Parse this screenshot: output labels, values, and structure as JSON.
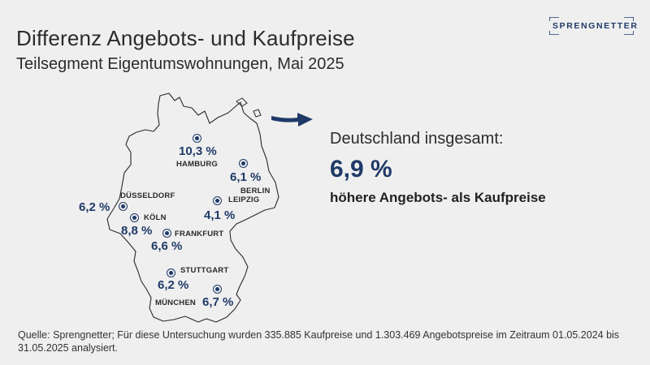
{
  "title": "Differenz Angebots- und Kaufpreise",
  "subtitle": "Teilsegment Eigentumswohnungen, Mai 2025",
  "logo": {
    "text": "SPRENGNETTER",
    "color": "#1f3a68"
  },
  "accent_color": "#1f3a68",
  "map": {
    "region": "Deutschland",
    "marker_icon": "circle-dot",
    "cities": [
      {
        "id": "hamburg",
        "name": "HAMBURG",
        "value": "10,3 %"
      },
      {
        "id": "berlin",
        "name": "BERLIN",
        "value": "6,1 %"
      },
      {
        "id": "leipzig",
        "name": "LEIPZIG",
        "value": "4,1 %"
      },
      {
        "id": "duesseldorf",
        "name": "DÜSSELDORF",
        "value": "6,2 %"
      },
      {
        "id": "koeln",
        "name": "KÖLN",
        "value": "8,8 %"
      },
      {
        "id": "frankfurt",
        "name": "FRANKFURT",
        "value": "6,6 %"
      },
      {
        "id": "stuttgart",
        "name": "STUTTGART",
        "value": "6,2 %"
      },
      {
        "id": "muenchen",
        "name": "MÜNCHEN",
        "value": "6,7 %"
      }
    ]
  },
  "summary": {
    "label": "Deutschland insgesamt:",
    "value": "6,9 %",
    "text": "höhere Angebots- als Kaufpreise"
  },
  "source": "Quelle: Sprengnetter; Für diese Untersuchung wurden 335.885 Kaufpreise und 1.303.469 Angebotspreise im Zeitraum 01.05.2024 bis 31.05.2025 analysiert."
}
